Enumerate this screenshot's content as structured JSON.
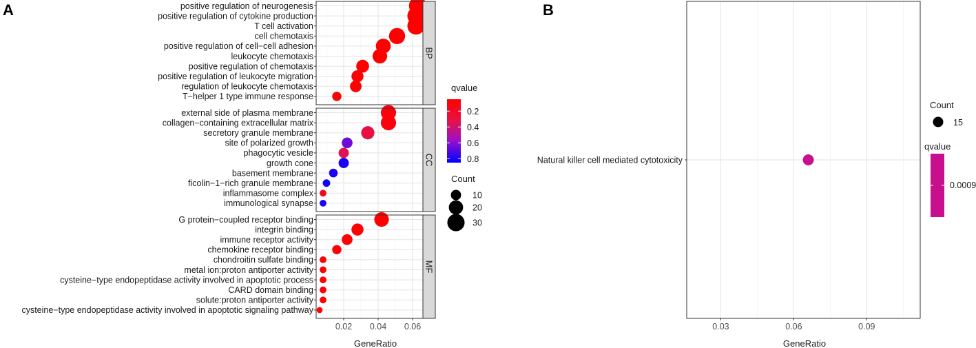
{
  "panels": {
    "a_label": "A",
    "b_label": "B"
  },
  "chart_data": [
    {
      "type": "scatter",
      "subtype": "faceted-dotplot",
      "xlabel": "GeneRatio",
      "xlim": [
        0.004,
        0.066
      ],
      "xticks": [
        "0.02",
        "0.04",
        "0.06"
      ],
      "xtick_values": [
        0.02,
        0.04,
        0.06
      ],
      "facets": [
        {
          "name": "BP",
          "terms": [
            {
              "term": "positive regulation of neurogenesis",
              "gene_ratio": 0.063,
              "count": 31,
              "qvalue": 0.05
            },
            {
              "term": "positive regulation of cytokine production",
              "gene_ratio": 0.062,
              "count": 30,
              "qvalue": 0.05
            },
            {
              "term": "T cell activation",
              "gene_ratio": 0.062,
              "count": 30,
              "qvalue": 0.05
            },
            {
              "term": "cell chemotaxis",
              "gene_ratio": 0.051,
              "count": 26,
              "qvalue": 0.05
            },
            {
              "term": "positive regulation of cell−cell adhesion",
              "gene_ratio": 0.043,
              "count": 22,
              "qvalue": 0.05
            },
            {
              "term": "leukocyte chemotaxis",
              "gene_ratio": 0.041,
              "count": 21,
              "qvalue": 0.05
            },
            {
              "term": "positive regulation of chemotaxis",
              "gene_ratio": 0.031,
              "count": 16,
              "qvalue": 0.05
            },
            {
              "term": "positive regulation of leukocyte migration",
              "gene_ratio": 0.028,
              "count": 14,
              "qvalue": 0.07
            },
            {
              "term": "regulation of leukocyte chemotaxis",
              "gene_ratio": 0.027,
              "count": 13,
              "qvalue": 0.06
            },
            {
              "term": "T−helper 1 type immune response",
              "gene_ratio": 0.016,
              "count": 8,
              "qvalue": 0.06
            }
          ]
        },
        {
          "name": "CC",
          "terms": [
            {
              "term": "external side of plasma membrane",
              "gene_ratio": 0.046,
              "count": 23,
              "qvalue": 0.1
            },
            {
              "term": "collagen−containing extracellular matrix",
              "gene_ratio": 0.046,
              "count": 23,
              "qvalue": 0.1
            },
            {
              "term": "secretory granule membrane",
              "gene_ratio": 0.034,
              "count": 17,
              "qvalue": 0.3
            },
            {
              "term": "site of polarized growth",
              "gene_ratio": 0.022,
              "count": 11,
              "qvalue": 0.65
            },
            {
              "term": "phagocytic vesicle",
              "gene_ratio": 0.02,
              "count": 10,
              "qvalue": 0.35
            },
            {
              "term": "growth cone",
              "gene_ratio": 0.02,
              "count": 10,
              "qvalue": 0.8
            },
            {
              "term": "basement membrane",
              "gene_ratio": 0.014,
              "count": 7,
              "qvalue": 0.8
            },
            {
              "term": "ficolin−1−rich granule membrane",
              "gene_ratio": 0.01,
              "count": 5,
              "qvalue": 0.82
            },
            {
              "term": "inflammasome complex",
              "gene_ratio": 0.008,
              "count": 4,
              "qvalue": 0.15
            },
            {
              "term": "immunological synapse",
              "gene_ratio": 0.008,
              "count": 4,
              "qvalue": 0.8
            }
          ]
        },
        {
          "name": "MF",
          "terms": [
            {
              "term": "G protein−coupled receptor binding",
              "gene_ratio": 0.042,
              "count": 21,
              "qvalue": 0.05
            },
            {
              "term": "integrin binding",
              "gene_ratio": 0.028,
              "count": 14,
              "qvalue": 0.06
            },
            {
              "term": "immune receptor activity",
              "gene_ratio": 0.022,
              "count": 11,
              "qvalue": 0.06
            },
            {
              "term": "chemokine receptor binding",
              "gene_ratio": 0.016,
              "count": 8,
              "qvalue": 0.06
            },
            {
              "term": "chondroitin sulfate binding",
              "gene_ratio": 0.008,
              "count": 4,
              "qvalue": 0.07
            },
            {
              "term": "metal ion:proton antiporter activity",
              "gene_ratio": 0.008,
              "count": 4,
              "qvalue": 0.07
            },
            {
              "term": "cysteine−type endopeptidase activity involved in apoptotic process",
              "gene_ratio": 0.008,
              "count": 4,
              "qvalue": 0.07
            },
            {
              "term": "CARD domain binding",
              "gene_ratio": 0.008,
              "count": 4,
              "qvalue": 0.07
            },
            {
              "term": "solute:proton antiporter activity",
              "gene_ratio": 0.008,
              "count": 4,
              "qvalue": 0.07
            },
            {
              "term": "cysteine−type endopeptidase activity involved in apoptotic signaling pathway",
              "gene_ratio": 0.006,
              "count": 3,
              "qvalue": 0.07
            }
          ]
        }
      ],
      "legend_qvalue": {
        "title": "qvalue",
        "range": [
          0.05,
          0.85
        ],
        "ticks": [
          "0.2",
          "0.4",
          "0.6",
          "0.8"
        ],
        "tick_values": [
          0.2,
          0.4,
          0.6,
          0.8
        ],
        "color_low": "#ff0000",
        "color_high": "#0000ff"
      },
      "legend_count": {
        "title": "Count",
        "labels": [
          "10",
          "20",
          "30"
        ],
        "values": [
          10,
          20,
          30
        ]
      }
    },
    {
      "type": "scatter",
      "subtype": "dotplot",
      "xlabel": "GeneRatio",
      "xlim": [
        0.016,
        0.112
      ],
      "xticks": [
        "0.03",
        "0.06",
        "0.09"
      ],
      "xtick_values": [
        0.03,
        0.06,
        0.09
      ],
      "terms": [
        {
          "term": "Natural killer cell mediated cytotoxicity",
          "gene_ratio": 0.066,
          "count": 15,
          "qvalue": 0.0009
        }
      ],
      "point_color": "#c8108f",
      "legend_count": {
        "title": "Count",
        "labels": [
          "15"
        ],
        "values": [
          15
        ]
      },
      "legend_qvalue": {
        "title": "qvalue",
        "labels": [
          "0.0009"
        ],
        "color": "#c8108f"
      }
    }
  ]
}
